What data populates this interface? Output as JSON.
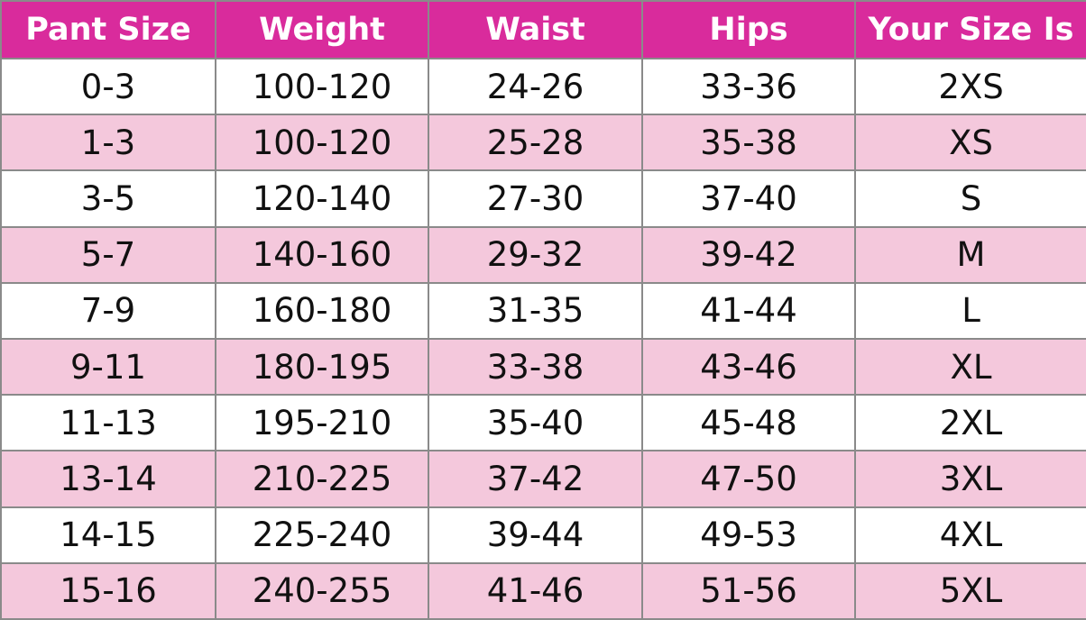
{
  "table": {
    "header": [
      "Pant Size",
      "Weight",
      "Waist",
      "Hips",
      "Your Size Is"
    ],
    "rows": [
      [
        "0-3",
        "100-120",
        "24-26",
        "33-36",
        "2XS"
      ],
      [
        "1-3",
        "100-120",
        "25-28",
        "35-38",
        "XS"
      ],
      [
        "3-5",
        "120-140",
        "27-30",
        "37-40",
        "S"
      ],
      [
        "5-7",
        "140-160",
        "29-32",
        "39-42",
        "M"
      ],
      [
        "7-9",
        "160-180",
        "31-35",
        "41-44",
        "L"
      ],
      [
        "9-11",
        "180-195",
        "33-38",
        "43-46",
        "XL"
      ],
      [
        "11-13",
        "195-210",
        "35-40",
        "45-48",
        "2XL"
      ],
      [
        "13-14",
        "210-225",
        "37-42",
        "47-50",
        "3XL"
      ],
      [
        "14-15",
        "225-240",
        "39-44",
        "49-53",
        "4XL"
      ],
      [
        "15-16",
        "240-255",
        "41-46",
        "51-56",
        "5XL"
      ]
    ]
  }
}
